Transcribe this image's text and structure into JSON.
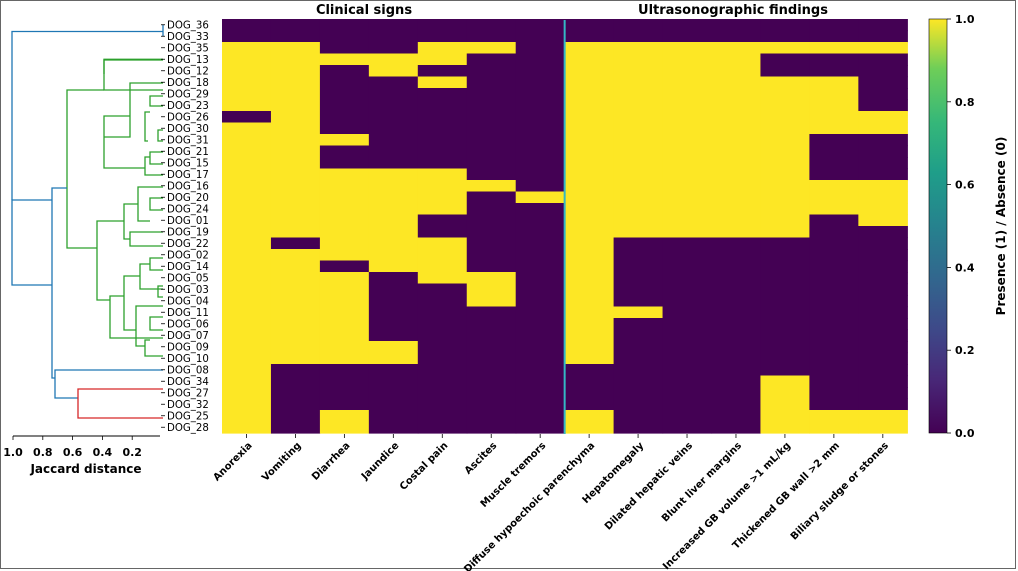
{
  "chart_data": {
    "type": "heatmap",
    "panel_titles": [
      "Clinical signs",
      "Ultrasonographic findings"
    ],
    "rows": [
      "DOG_36",
      "DOG_33",
      "DOG_35",
      "DOG_13",
      "DOG_12",
      "DOG_18",
      "DOG_29",
      "DOG_23",
      "DOG_26",
      "DOG_30",
      "DOG_31",
      "DOG_21",
      "DOG_15",
      "DOG_17",
      "DOG_16",
      "DOG_20",
      "DOG_24",
      "DOG_01",
      "DOG_19",
      "DOG_22",
      "DOG_02",
      "DOG_14",
      "DOG_05",
      "DOG_03",
      "DOG_04",
      "DOG_11",
      "DOG_06",
      "DOG_07",
      "DOG_09",
      "DOG_10",
      "DOG_08",
      "DOG_34",
      "DOG_27",
      "DOG_32",
      "DOG_25",
      "DOG_28"
    ],
    "columns": [
      "Anorexia",
      "Vomiting",
      "Diarrhea",
      "Jaundice",
      "Costal pain",
      "Ascites",
      "Muscle tremors",
      "Diffuse hypoechoic parenchyma",
      "Hepatomegaly",
      "Dilated hepatic veins",
      "Blunt liver margins",
      "Increased GB volume >1 mL/kg",
      "Thickened GB wall >2 mm",
      "Biliary sludge or stones"
    ],
    "clinical_column_count": 7,
    "values": [
      [
        0,
        0,
        0,
        0,
        0,
        0,
        0,
        0,
        0,
        0,
        0,
        0,
        0,
        0
      ],
      [
        0,
        0,
        0,
        0,
        0,
        0,
        0,
        0,
        0,
        0,
        0,
        0,
        0,
        0
      ],
      [
        1,
        1,
        0,
        0,
        1,
        1,
        0,
        1,
        1,
        1,
        1,
        1,
        1,
        1
      ],
      [
        1,
        1,
        1,
        1,
        1,
        0,
        0,
        1,
        1,
        1,
        1,
        0,
        0,
        0
      ],
      [
        1,
        1,
        0,
        1,
        0,
        0,
        0,
        1,
        1,
        1,
        1,
        0,
        0,
        0
      ],
      [
        1,
        1,
        0,
        0,
        1,
        0,
        0,
        1,
        1,
        1,
        1,
        1,
        1,
        0
      ],
      [
        1,
        1,
        0,
        0,
        0,
        0,
        0,
        1,
        1,
        1,
        1,
        1,
        1,
        0
      ],
      [
        1,
        1,
        0,
        0,
        0,
        0,
        0,
        1,
        1,
        1,
        1,
        1,
        1,
        0
      ],
      [
        0,
        1,
        0,
        0,
        0,
        0,
        0,
        1,
        1,
        1,
        1,
        1,
        1,
        1
      ],
      [
        1,
        1,
        0,
        0,
        0,
        0,
        0,
        1,
        1,
        1,
        1,
        1,
        1,
        1
      ],
      [
        1,
        1,
        1,
        0,
        0,
        0,
        0,
        1,
        1,
        1,
        1,
        1,
        0,
        0
      ],
      [
        1,
        1,
        0,
        0,
        0,
        0,
        0,
        1,
        1,
        1,
        1,
        1,
        0,
        0
      ],
      [
        1,
        1,
        0,
        0,
        0,
        0,
        0,
        1,
        1,
        1,
        1,
        1,
        0,
        0
      ],
      [
        1,
        1,
        1,
        1,
        1,
        0,
        0,
        1,
        1,
        1,
        1,
        1,
        0,
        0
      ],
      [
        1,
        1,
        1,
        1,
        1,
        1,
        0,
        1,
        1,
        1,
        1,
        1,
        1,
        1
      ],
      [
        1,
        1,
        1,
        1,
        1,
        0,
        1,
        1,
        1,
        1,
        1,
        1,
        1,
        1
      ],
      [
        1,
        1,
        1,
        1,
        1,
        0,
        0,
        1,
        1,
        1,
        1,
        1,
        1,
        1
      ],
      [
        1,
        1,
        1,
        1,
        0,
        0,
        0,
        1,
        1,
        1,
        1,
        1,
        0,
        1
      ],
      [
        1,
        1,
        1,
        1,
        0,
        0,
        0,
        1,
        1,
        1,
        1,
        1,
        0,
        0
      ],
      [
        1,
        0,
        1,
        1,
        1,
        0,
        0,
        1,
        0,
        0,
        0,
        0,
        0,
        0
      ],
      [
        1,
        1,
        1,
        1,
        1,
        0,
        0,
        1,
        0,
        0,
        0,
        0,
        0,
        0
      ],
      [
        1,
        1,
        0,
        1,
        1,
        0,
        0,
        1,
        0,
        0,
        0,
        0,
        0,
        0
      ],
      [
        1,
        1,
        1,
        0,
        1,
        1,
        0,
        1,
        0,
        0,
        0,
        0,
        0,
        0
      ],
      [
        1,
        1,
        1,
        0,
        0,
        1,
        0,
        1,
        0,
        0,
        0,
        0,
        0,
        0
      ],
      [
        1,
        1,
        1,
        0,
        0,
        1,
        0,
        1,
        0,
        0,
        0,
        0,
        0,
        0
      ],
      [
        1,
        1,
        1,
        0,
        0,
        0,
        0,
        1,
        1,
        0,
        0,
        0,
        0,
        0
      ],
      [
        1,
        1,
        1,
        0,
        0,
        0,
        0,
        1,
        0,
        0,
        0,
        0,
        0,
        0
      ],
      [
        1,
        1,
        1,
        0,
        0,
        0,
        0,
        1,
        0,
        0,
        0,
        0,
        0,
        0
      ],
      [
        1,
        1,
        1,
        1,
        0,
        0,
        0,
        1,
        0,
        0,
        0,
        0,
        0,
        0
      ],
      [
        1,
        1,
        1,
        1,
        0,
        0,
        0,
        1,
        0,
        0,
        0,
        0,
        0,
        0
      ],
      [
        1,
        0,
        0,
        0,
        0,
        0,
        0,
        0,
        0,
        0,
        0,
        0,
        0,
        0
      ],
      [
        1,
        0,
        0,
        0,
        0,
        0,
        0,
        0,
        0,
        0,
        0,
        1,
        0,
        0
      ],
      [
        1,
        0,
        0,
        0,
        0,
        0,
        0,
        0,
        0,
        0,
        0,
        1,
        0,
        0
      ],
      [
        1,
        0,
        0,
        0,
        0,
        0,
        0,
        0,
        0,
        0,
        0,
        1,
        0,
        0
      ],
      [
        1,
        0,
        1,
        0,
        0,
        0,
        0,
        1,
        0,
        0,
        0,
        1,
        1,
        1
      ],
      [
        1,
        0,
        1,
        0,
        0,
        0,
        0,
        1,
        0,
        0,
        0,
        1,
        1,
        1
      ]
    ],
    "colorbar": {
      "label": "Presence (1) / Absence (0)",
      "ticks": [
        "0.0",
        "0.2",
        "0.4",
        "0.6",
        "0.8",
        "1.0"
      ],
      "range": [
        0,
        1
      ]
    },
    "dendrogram": {
      "xlabel": "Jaccard distance",
      "ticks": [
        "1.0",
        "0.8",
        "0.6",
        "0.4",
        "0.2"
      ],
      "xlim": [
        1.0,
        0.0
      ]
    }
  },
  "colors": {
    "present": "#fde725",
    "absent": "#440154",
    "divider": "#35b7c4",
    "blue": "#1f77b4",
    "green": "#2ca02c",
    "red": "#d62728"
  }
}
